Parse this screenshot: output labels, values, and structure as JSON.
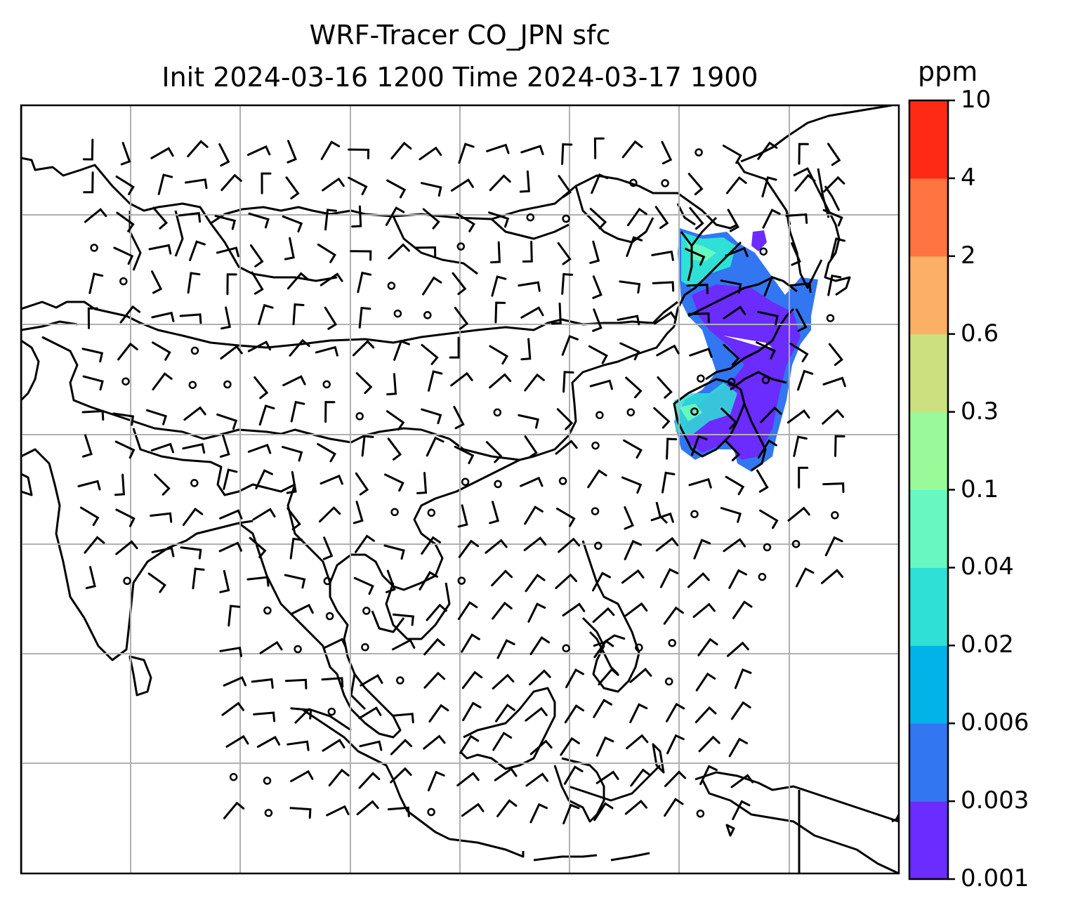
{
  "title": {
    "line1": "WRF-Tracer CO_JPN sfc",
    "line2": "Init 2024-03-16 1200 Time 2024-03-17 1900"
  },
  "colorbar": {
    "unit": "ppm",
    "ticks": [
      "0.001",
      "0.003",
      "0.006",
      "0.02",
      "0.04",
      "0.1",
      "0.3",
      "0.6",
      "2",
      "4",
      "10"
    ],
    "colors": [
      "#6a2cff",
      "#3276f2",
      "#00b3e9",
      "#2fe0d6",
      "#66f8c0",
      "#98fa98",
      "#cde080",
      "#fcb065",
      "#ff7440",
      "#ff2a16"
    ]
  },
  "map": {
    "tracer": "CO_JPN",
    "level": "sfc",
    "gridlines": true,
    "plume_colors": {
      "low": "#6a2cff",
      "mid": "#3276f2",
      "edge": "#2fe0d6",
      "hi": "#66f8c0"
    }
  }
}
